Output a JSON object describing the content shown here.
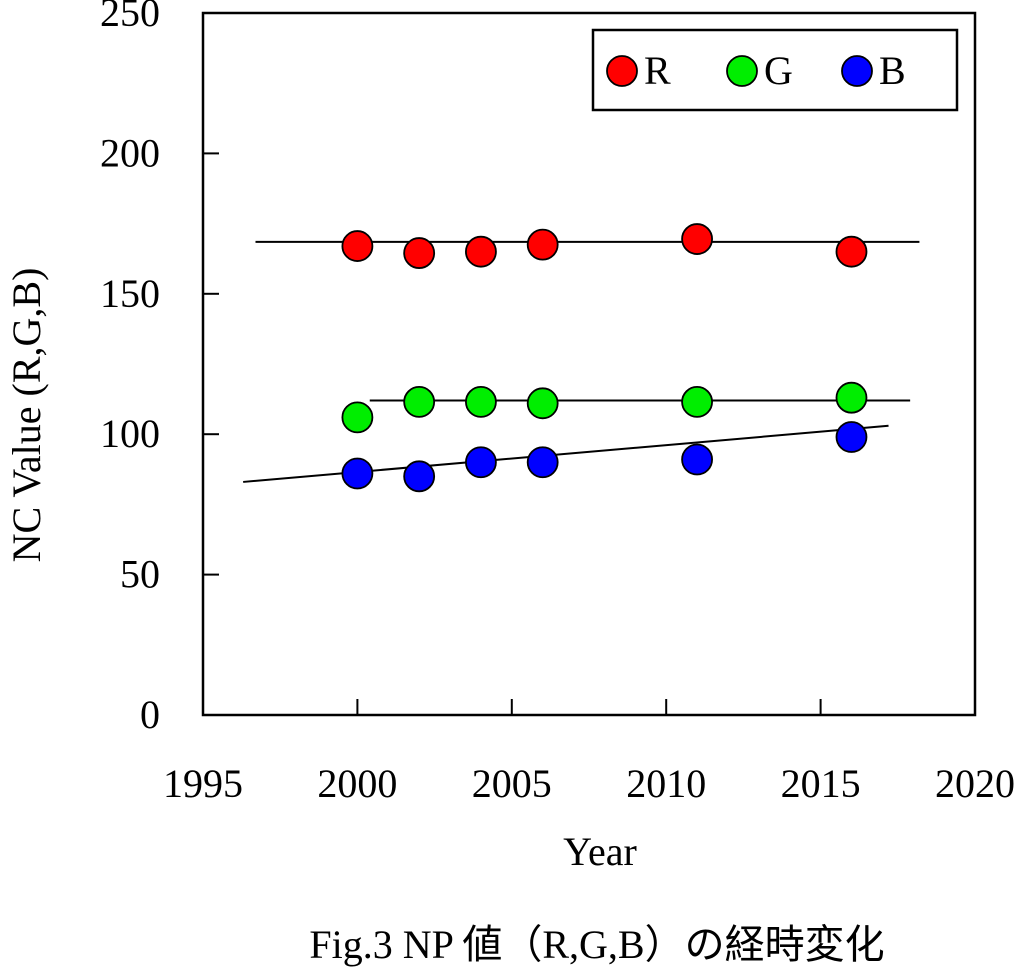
{
  "caption": "Fig.3 NP 値（R,G,B）の経時変化",
  "chart_data": {
    "type": "scatter",
    "xlabel": "Year",
    "ylabel": "NC Value (R,G,B)",
    "xlim": [
      1995,
      2020
    ],
    "ylim": [
      0,
      250
    ],
    "xticks": [
      1995,
      2000,
      2005,
      2010,
      2015,
      2020
    ],
    "yticks": [
      0,
      50,
      100,
      150,
      200,
      250
    ],
    "grid": false,
    "legend_position": "top-right",
    "series": [
      {
        "name": "R",
        "color": "#ff0000",
        "points": [
          [
            2000,
            167
          ],
          [
            2002,
            164.5
          ],
          [
            2004,
            165
          ],
          [
            2006,
            167.5
          ],
          [
            2011,
            169.5
          ],
          [
            2016,
            165
          ]
        ],
        "trend": {
          "x": [
            1996.7,
            2018.2
          ],
          "y": [
            168.5,
            168.5
          ]
        }
      },
      {
        "name": "G",
        "color": "#00ee00",
        "points": [
          [
            2000,
            106
          ],
          [
            2002,
            111.5
          ],
          [
            2004,
            111.5
          ],
          [
            2006,
            111
          ],
          [
            2011,
            111.5
          ],
          [
            2016,
            113
          ]
        ],
        "trend": {
          "x": [
            2000.4,
            2017.9
          ],
          "y": [
            112,
            112
          ]
        }
      },
      {
        "name": "B",
        "color": "#0000ff",
        "points": [
          [
            2000,
            86
          ],
          [
            2002,
            85
          ],
          [
            2004,
            90
          ],
          [
            2006,
            90
          ],
          [
            2011,
            91
          ],
          [
            2016,
            99
          ]
        ],
        "trend": {
          "x": [
            1996.3,
            2017.2
          ],
          "y": [
            83,
            103
          ]
        }
      }
    ]
  }
}
